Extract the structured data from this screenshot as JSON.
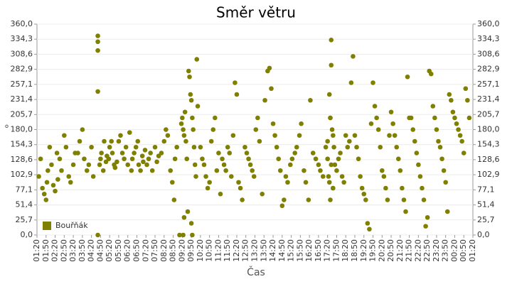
{
  "chart_data": {
    "type": "scatter",
    "title": "Směr větru",
    "x_label": "Čas",
    "y_label": "°",
    "legend": "bottom-left",
    "grid": true,
    "xlim": [
      0,
      24
    ],
    "ylim": [
      0,
      360
    ],
    "yticks": [
      {
        "value": 0,
        "label": "0,0"
      },
      {
        "value": 25.7,
        "label": "25,7"
      },
      {
        "value": 51.4,
        "label": "51,4"
      },
      {
        "value": 77.1,
        "label": "77,1"
      },
      {
        "value": 102.9,
        "label": "102,9"
      },
      {
        "value": 128.6,
        "label": "128,6"
      },
      {
        "value": 154.3,
        "label": "154,3"
      },
      {
        "value": 180,
        "label": "180,0"
      },
      {
        "value": 205.7,
        "label": "205,7"
      },
      {
        "value": 231.4,
        "label": "231,4"
      },
      {
        "value": 257.1,
        "label": "257,1"
      },
      {
        "value": 282.9,
        "label": "282,9"
      },
      {
        "value": 308.6,
        "label": "308,6"
      },
      {
        "value": 334.3,
        "label": "334,3"
      },
      {
        "value": 360,
        "label": "360,0"
      }
    ],
    "xticks": [
      {
        "value": 0,
        "label": "01:20"
      },
      {
        "value": 0.5,
        "label": "01:50"
      },
      {
        "value": 1,
        "label": "02:20"
      },
      {
        "value": 1.5,
        "label": "02:50"
      },
      {
        "value": 2,
        "label": "03:20"
      },
      {
        "value": 2.5,
        "label": "03:50"
      },
      {
        "value": 3,
        "label": "04:20"
      },
      {
        "value": 3.5,
        "label": "04:50"
      },
      {
        "value": 4,
        "label": "05:20"
      },
      {
        "value": 4.5,
        "label": "05:50"
      },
      {
        "value": 5,
        "label": "06:20"
      },
      {
        "value": 5.5,
        "label": "06:50"
      },
      {
        "value": 6,
        "label": "07:20"
      },
      {
        "value": 6.5,
        "label": "07:50"
      },
      {
        "value": 7,
        "label": "08:20"
      },
      {
        "value": 7.5,
        "label": "08:50"
      },
      {
        "value": 8,
        "label": "09:20"
      },
      {
        "value": 8.5,
        "label": "09:50"
      },
      {
        "value": 9,
        "label": "10:20"
      },
      {
        "value": 9.5,
        "label": "10:50"
      },
      {
        "value": 10,
        "label": "11:20"
      },
      {
        "value": 10.5,
        "label": "11:50"
      },
      {
        "value": 11,
        "label": "12:20"
      },
      {
        "value": 11.5,
        "label": "12:50"
      },
      {
        "value": 12,
        "label": "13:20"
      },
      {
        "value": 12.5,
        "label": "13:50"
      },
      {
        "value": 13,
        "label": "14:20"
      },
      {
        "value": 13.5,
        "label": "14:50"
      },
      {
        "value": 14,
        "label": "15:20"
      },
      {
        "value": 14.5,
        "label": "15:50"
      },
      {
        "value": 15,
        "label": "16:20"
      },
      {
        "value": 15.5,
        "label": "16:50"
      },
      {
        "value": 16,
        "label": "17:20"
      },
      {
        "value": 16.5,
        "label": "17:50"
      },
      {
        "value": 17,
        "label": "18:20"
      },
      {
        "value": 17.5,
        "label": "18:50"
      },
      {
        "value": 18,
        "label": "19:20"
      },
      {
        "value": 18.5,
        "label": "19:50"
      },
      {
        "value": 19,
        "label": "20:20"
      },
      {
        "value": 19.5,
        "label": "20:50"
      },
      {
        "value": 20,
        "label": "21:20"
      },
      {
        "value": 20.5,
        "label": "21:50"
      },
      {
        "value": 21,
        "label": "22:20"
      },
      {
        "value": 21.5,
        "label": "22:50"
      },
      {
        "value": 22,
        "label": "23:20"
      },
      {
        "value": 22.5,
        "label": "23:50"
      },
      {
        "value": 23,
        "label": "00:20"
      },
      {
        "value": 23.5,
        "label": "00:50"
      },
      {
        "value": 24,
        "label": "01:20"
      }
    ],
    "x": [
      0.1,
      0.2,
      0.3,
      0.4,
      0.5,
      0.55,
      0.6,
      0.7,
      0.8,
      0.9,
      1.0,
      1.1,
      1.15,
      1.25,
      1.35,
      1.5,
      1.6,
      1.75,
      1.85,
      2.0,
      2.1,
      2.25,
      2.35,
      2.5,
      2.6,
      2.75,
      2.85,
      3.0,
      3.1,
      3.35,
      3.35,
      3.35,
      3.35,
      3.35,
      3.45,
      3.5,
      3.55,
      3.65,
      3.7,
      3.8,
      3.85,
      3.95,
      4.0,
      4.1,
      4.15,
      4.25,
      4.3,
      4.4,
      4.5,
      4.6,
      4.7,
      4.8,
      4.9,
      5.0,
      5.1,
      5.2,
      5.25,
      5.35,
      5.45,
      5.55,
      5.6,
      5.7,
      5.8,
      5.85,
      5.95,
      6.05,
      6.15,
      6.25,
      6.35,
      6.5,
      6.6,
      6.7,
      6.85,
      7.0,
      7.1,
      7.2,
      7.35,
      7.45,
      7.55,
      7.6,
      7.7,
      7.85,
      7.95,
      8.0,
      8.05,
      8.1,
      8.15,
      8.2,
      8.25,
      8.05,
      8.1,
      8.3,
      8.35,
      8.4,
      8.45,
      8.5,
      8.55,
      8.6,
      8.65,
      8.7,
      8.75,
      8.5,
      8.55,
      8.8,
      8.85,
      9.0,
      9.1,
      9.2,
      9.3,
      9.4,
      9.5,
      9.6,
      9.7,
      9.8,
      9.9,
      10.0,
      10.1,
      10.2,
      10.3,
      10.4,
      10.5,
      10.6,
      10.7,
      10.8,
      10.9,
      11.0,
      11.1,
      11.2,
      11.3,
      11.45,
      11.55,
      11.65,
      11.75,
      11.85,
      11.95,
      12.05,
      12.15,
      12.25,
      12.4,
      12.55,
      12.7,
      12.8,
      12.9,
      13.0,
      13.1,
      13.2,
      13.3,
      13.4,
      13.5,
      13.6,
      13.7,
      13.8,
      13.95,
      14.05,
      14.2,
      14.3,
      14.45,
      14.55,
      14.7,
      14.8,
      14.95,
      15.05,
      15.2,
      15.35,
      15.5,
      15.6,
      15.75,
      15.9,
      16.0,
      16.15,
      16.3,
      16.1,
      16.15,
      16.2,
      16.2,
      16.25,
      16.3,
      16.35,
      16.0,
      16.05,
      16.1,
      16.3,
      16.2,
      16.15,
      16.4,
      16.5,
      16.6,
      16.7,
      16.8,
      16.9,
      17.0,
      17.1,
      17.2,
      17.3,
      17.4,
      17.5,
      17.6,
      17.7,
      17.8,
      17.9,
      18.0,
      18.1,
      18.2,
      18.3,
      18.4,
      18.5,
      18.6,
      18.7,
      18.8,
      18.9,
      19.0,
      19.1,
      19.2,
      19.3,
      19.4,
      19.5,
      19.6,
      19.7,
      19.8,
      19.9,
      20.0,
      20.1,
      20.2,
      20.3,
      20.4,
      20.5,
      20.6,
      20.7,
      20.8,
      20.9,
      21.0,
      21.1,
      21.2,
      21.3,
      21.4,
      21.5,
      21.6,
      21.7,
      21.8,
      21.9,
      22.0,
      22.1,
      22.2,
      22.3,
      22.4,
      22.5,
      22.6,
      22.7,
      22.8,
      22.9,
      23.0,
      23.1,
      23.2,
      23.3,
      23.4,
      23.5,
      23.6,
      23.7,
      23.8
    ],
    "series": [
      {
        "name": "Bouřňák",
        "color": "#808000",
        "values": [
          100,
          130,
          80,
          70,
          60,
          90,
          110,
          150,
          120,
          85,
          75,
          140,
          95,
          130,
          110,
          170,
          150,
          100,
          90,
          120,
          140,
          140,
          160,
          180,
          130,
          110,
          120,
          150,
          100,
          340,
          330,
          315,
          245,
          0,
          120,
          130,
          140,
          110,
          160,
          125,
          135,
          130,
          150,
          160,
          140,
          120,
          115,
          125,
          160,
          170,
          140,
          130,
          150,
          120,
          175,
          110,
          130,
          140,
          150,
          160,
          120,
          110,
          135,
          125,
          145,
          120,
          130,
          140,
          110,
          150,
          125,
          135,
          140,
          160,
          180,
          170,
          110,
          90,
          60,
          130,
          150,
          0,
          190,
          200,
          180,
          170,
          210,
          160,
          130,
          0,
          30,
          40,
          280,
          270,
          240,
          230,
          200,
          180,
          150,
          120,
          100,
          20,
          0,
          300,
          220,
          150,
          130,
          120,
          100,
          80,
          90,
          160,
          180,
          200,
          110,
          140,
          70,
          130,
          120,
          110,
          150,
          140,
          100,
          170,
          260,
          240,
          90,
          80,
          60,
          150,
          140,
          130,
          120,
          110,
          100,
          180,
          200,
          160,
          70,
          230,
          280,
          285,
          250,
          190,
          170,
          150,
          130,
          110,
          50,
          60,
          100,
          90,
          120,
          130,
          140,
          150,
          170,
          190,
          110,
          90,
          60,
          230,
          140,
          130,
          120,
          110,
          100,
          150,
          160,
          200,
          80,
          240,
          200,
          333,
          290,
          180,
          170,
          150,
          130,
          100,
          90,
          80,
          120,
          60,
          120,
          110,
          130,
          140,
          100,
          90,
          170,
          150,
          160,
          260,
          305,
          170,
          150,
          130,
          100,
          80,
          70,
          60,
          20,
          10,
          190,
          260,
          220,
          200,
          180,
          150,
          110,
          100,
          80,
          60,
          170,
          210,
          190,
          170,
          150,
          130,
          110,
          80,
          60,
          40,
          270,
          200,
          200,
          180,
          160,
          140,
          120,
          100,
          80,
          60,
          15,
          30,
          280,
          275,
          220,
          200,
          180,
          160,
          150,
          130,
          110,
          90,
          40,
          240,
          230,
          210,
          200,
          190,
          180,
          170,
          160,
          140,
          250,
          230,
          200
        ]
      }
    ]
  }
}
